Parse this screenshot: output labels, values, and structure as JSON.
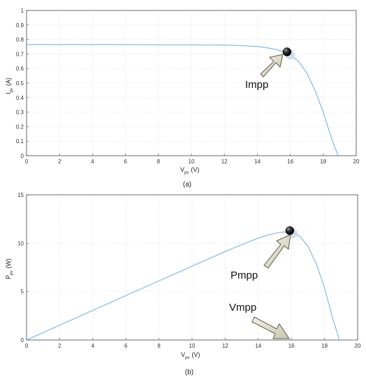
{
  "chart_data": [
    {
      "type": "line",
      "caption": "(a)",
      "xlabel": "V",
      "xlabel_sub": "pv",
      "xlabel_unit": "(V)",
      "ylabel": "I",
      "ylabel_sub": "pv",
      "ylabel_unit": "(A)",
      "xlim": [
        0,
        20
      ],
      "ylim": [
        0,
        1
      ],
      "xticks": [
        0,
        2,
        4,
        6,
        8,
        10,
        12,
        14,
        16,
        18,
        20
      ],
      "yticks": [
        0,
        0.1,
        0.2,
        0.3,
        0.4,
        0.5,
        0.6,
        0.7,
        0.8,
        0.9,
        1
      ],
      "grid": true,
      "series": [
        {
          "x": [
            0,
            2,
            4,
            6,
            8,
            10,
            12,
            13,
            14,
            14.5,
            15,
            15.5,
            16,
            16.5,
            17,
            17.5,
            18,
            18.5,
            18.9
          ],
          "values": [
            0.765,
            0.765,
            0.765,
            0.765,
            0.764,
            0.763,
            0.762,
            0.758,
            0.752,
            0.745,
            0.735,
            0.72,
            0.695,
            0.65,
            0.57,
            0.45,
            0.3,
            0.12,
            0
          ]
        }
      ],
      "marker": {
        "x": 15.8,
        "y": 0.715
      },
      "annotations": [
        {
          "text": "Impp",
          "type": "arrow",
          "points_to": {
            "x": 15.8,
            "y": 0.715
          }
        }
      ],
      "colors": {
        "line": "#6aaee0",
        "marker": "#111111"
      }
    },
    {
      "type": "line",
      "caption": "(b)",
      "xlabel": "V",
      "xlabel_sub": "pv",
      "xlabel_unit": "(V)",
      "ylabel": "P",
      "ylabel_sub": "pv",
      "ylabel_unit": "(W)",
      "xlim": [
        0,
        20
      ],
      "ylim": [
        0,
        15
      ],
      "xticks": [
        0,
        2,
        4,
        6,
        8,
        10,
        12,
        14,
        16,
        18,
        20
      ],
      "yticks": [
        0,
        5,
        10,
        15
      ],
      "grid": true,
      "series": [
        {
          "x": [
            0,
            2,
            4,
            6,
            8,
            10,
            12,
            13,
            14,
            14.5,
            15,
            15.5,
            16,
            16.5,
            17,
            17.5,
            18,
            18.5,
            18.9
          ],
          "values": [
            0,
            1.53,
            3.06,
            4.59,
            6.11,
            7.63,
            9.14,
            9.85,
            10.53,
            10.8,
            11.02,
            11.16,
            11.12,
            10.73,
            9.69,
            7.88,
            5.4,
            2.22,
            0
          ]
        }
      ],
      "marker": {
        "x": 15.9,
        "y": 11.3
      },
      "annotations": [
        {
          "text": "Pmpp",
          "type": "arrow",
          "points_to": {
            "x": 15.9,
            "y": 11.3
          }
        },
        {
          "text": "Vmpp",
          "type": "arrow",
          "points_to": {
            "x": 16,
            "y": 0
          }
        }
      ],
      "colors": {
        "line": "#6aaee0",
        "marker": "#111111"
      }
    }
  ]
}
